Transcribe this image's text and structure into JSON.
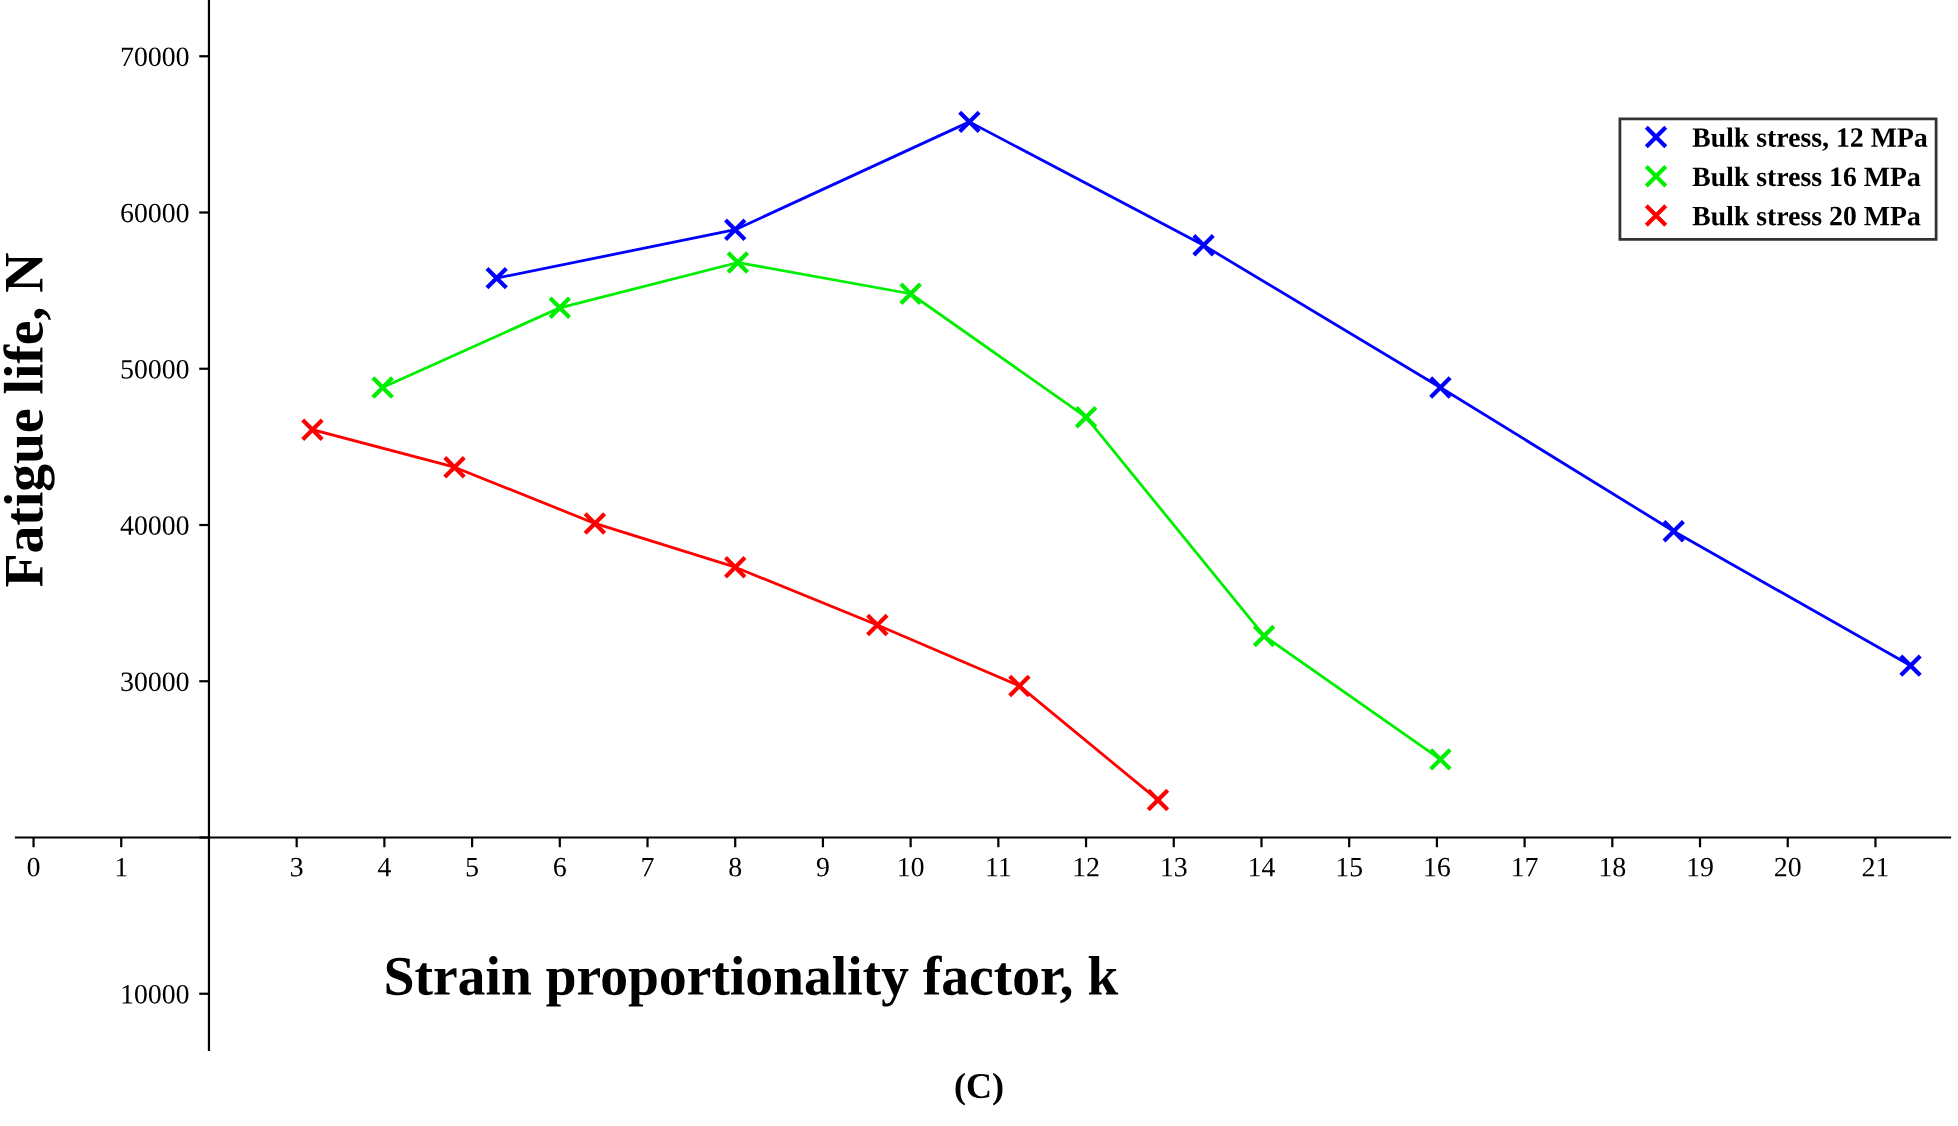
{
  "chart_data": {
    "type": "line",
    "xlabel": "Strain proportionality factor, k",
    "ylabel": "Fatigue life, N",
    "annotations": [
      "(C)"
    ],
    "series": [
      {
        "name": "Bulk stress, 12 MPa",
        "color": "#0000ff",
        "x": [
          5.28,
          8.0,
          10.67,
          13.34,
          16.04,
          18.7,
          21.4
        ],
        "values": [
          55800,
          58900,
          65800,
          57900,
          48800,
          39600,
          31000
        ]
      },
      {
        "name": "Bulk stress 16 MPa",
        "color": "#00ee00",
        "x": [
          3.98,
          6.0,
          8.03,
          10.0,
          12.0,
          14.03,
          16.04
        ],
        "values": [
          48800,
          53900,
          56800,
          54800,
          46900,
          32900,
          25000
        ]
      },
      {
        "name": "Bulk stress 20 MPa",
        "color": "#ff0000",
        "x": [
          3.18,
          4.8,
          6.4,
          8.0,
          9.62,
          11.24,
          12.82
        ],
        "values": [
          46100,
          43700,
          40100,
          37300,
          33600,
          29700,
          22400
        ]
      }
    ],
    "xlim": [
      -0.2,
      21.85
    ],
    "ylim": [
      6400,
      73600
    ],
    "xticks": [
      0,
      1,
      3,
      4,
      5,
      6,
      7,
      8,
      9,
      10,
      11,
      12,
      13,
      14,
      15,
      16,
      17,
      18,
      19,
      20,
      21
    ],
    "yticks": [
      10000,
      {
        "value": 20000,
        "label": null
      },
      30000,
      40000,
      50000,
      60000,
      70000
    ],
    "marker": "cross",
    "grid": false,
    "legend": "top right"
  }
}
